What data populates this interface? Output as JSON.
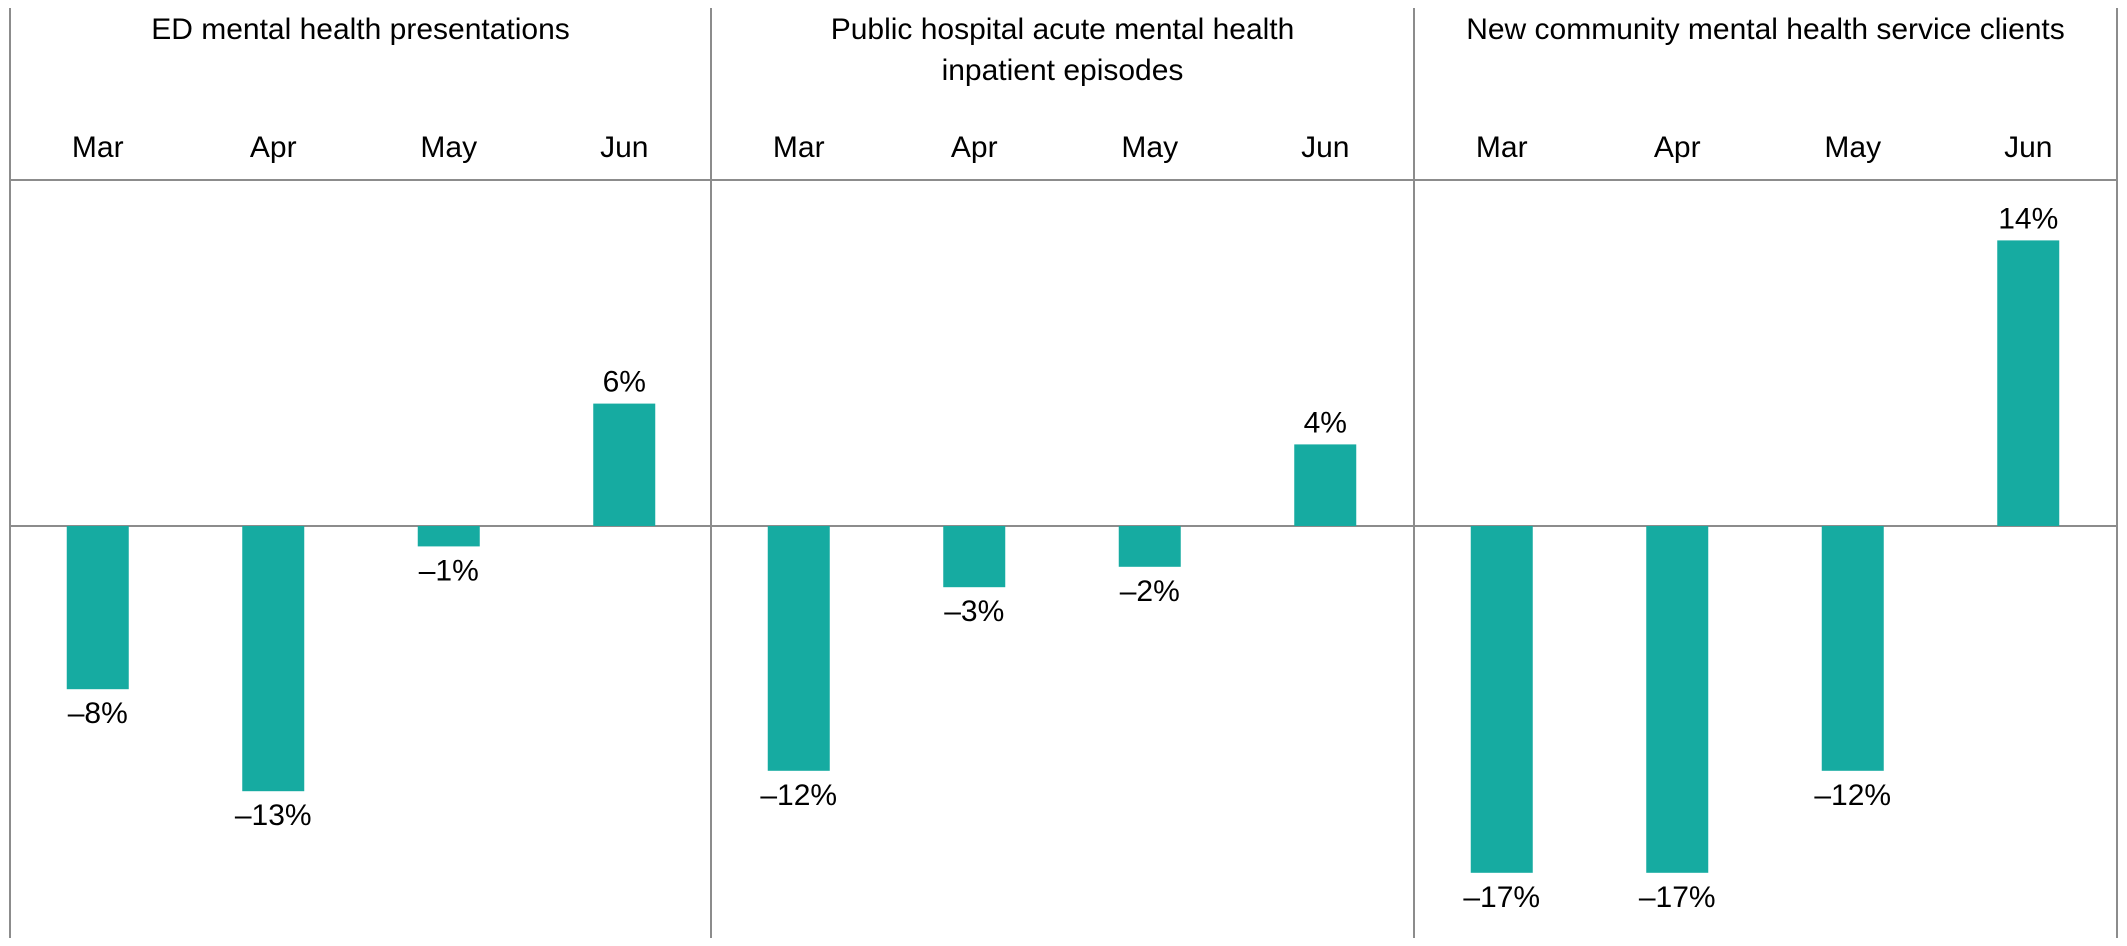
{
  "chart_data": [
    {
      "type": "bar",
      "title": "ED mental health presentations",
      "categories": [
        "Mar",
        "Apr",
        "May",
        "Jun"
      ],
      "values": [
        -8,
        -13,
        -1,
        6
      ],
      "value_labels": [
        "–8%",
        "–13%",
        "–1%",
        "6%"
      ],
      "ylim": [
        -20,
        17
      ],
      "grid": false
    },
    {
      "type": "bar",
      "title": "Public hospital acute mental health inpatient episodes",
      "title_lines": [
        "Public hospital acute mental health",
        "inpatient episodes"
      ],
      "categories": [
        "Mar",
        "Apr",
        "May",
        "Jun"
      ],
      "values": [
        -12,
        -3,
        -2,
        4
      ],
      "value_labels": [
        "–12%",
        "–3%",
        "–2%",
        "4%"
      ],
      "ylim": [
        -20,
        17
      ],
      "grid": false
    },
    {
      "type": "bar",
      "title": "New community mental health service clients",
      "categories": [
        "Mar",
        "Apr",
        "May",
        "Jun"
      ],
      "values": [
        -17,
        -17,
        -12,
        14
      ],
      "value_labels": [
        "–17%",
        "–17%",
        "–12%",
        "14%"
      ],
      "ylim": [
        -20,
        17
      ],
      "grid": false
    }
  ],
  "colors": {
    "bar": "#16ABA1",
    "line": "#8C8C8C",
    "text": "#000000"
  }
}
